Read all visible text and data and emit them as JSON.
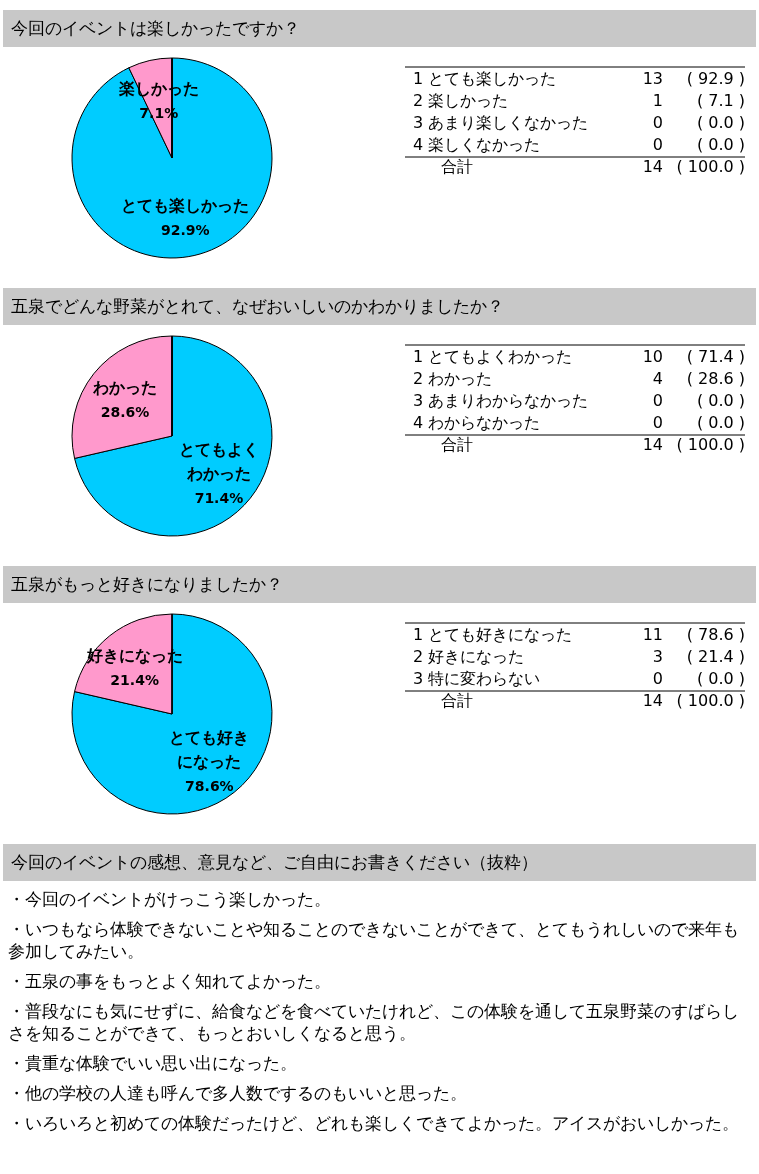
{
  "chart_data": [
    {
      "type": "pie",
      "title": "今回のイベントは楽しかったですか？",
      "categories": [
        "とても楽しかった",
        "楽しかった",
        "あまり楽しくなかった",
        "楽しくなかった"
      ],
      "values": [
        92.9,
        7.1,
        0.0,
        0.0
      ],
      "colors": [
        "#00ccff",
        "#ff99cc",
        "#ffff99",
        "#99cc00"
      ],
      "value_labels": [
        "92.9%",
        "7.1%",
        null,
        null
      ],
      "annotations": [
        "1",
        "13",
        "( 92.9 )",
        "2",
        "1",
        "( 7.1 )",
        "3",
        "0",
        "( 0.0 )",
        "4",
        "0",
        "( 0.0 )",
        "合計",
        "14",
        "( 100.0 )"
      ]
    },
    {
      "type": "pie",
      "title": "五泉でどんな野菜がとれて、なぜおいしいのかわかりましたか？",
      "categories": [
        "とてもよくわかった",
        "わかった",
        "あまりわからなかった",
        "わからなかった"
      ],
      "values": [
        71.4,
        28.6,
        0.0,
        0.0
      ],
      "colors": [
        "#00ccff",
        "#ff99cc",
        "#ffff99",
        "#99cc00"
      ],
      "value_labels": [
        "71.4%",
        "28.6%",
        null,
        null
      ],
      "annotations": [
        "1",
        "10",
        "( 71.4 )",
        "2",
        "4",
        "( 28.6 )",
        "3",
        "0",
        "( 0.0 )",
        "4",
        "0",
        "( 0.0 )",
        "合計",
        "14",
        "( 100.0 )"
      ]
    },
    {
      "type": "pie",
      "title": "五泉がもっと好きになりましたか？",
      "categories": [
        "とても好きになった",
        "好きになった",
        "特に変わらない"
      ],
      "values": [
        78.6,
        21.4,
        0.0
      ],
      "colors": [
        "#00ccff",
        "#ff99cc",
        "#ffff99"
      ],
      "value_labels": [
        "78.6%",
        "21.4%",
        null
      ],
      "annotations": [
        "1",
        "11",
        "( 78.6 )",
        "2",
        "3",
        "( 21.4 )",
        "3",
        "0",
        "( 0.0 )",
        "合計",
        "14",
        "( 100.0 )"
      ]
    },
    {
      "type": "other",
      "title": "今回のイベントの感想、意見など、ご自由にお書きください（抜粋）",
      "annotations": [
        "・今回のイベントがけっこう楽しかった。",
        "・いつもなら体験できないことや知ることのできないことができて、とてもうれしいので来年も参加してみたい。",
        "・五泉の事をもっとよく知れてよかった。",
        "・普段なにも気にせずに、給食などを食べていたけれど、この体験を通して五泉野菜のすばらしさを知ることができて、もっとおいしくなると思う。",
        "・貴重な体験でいい思い出になった。",
        "・他の学校の人達も呼んで多人数でするのもいいと思った。",
        "・いろいろと初めての体験だったけど、どれも楽しくできてよかった。アイスがおいしかった。"
      ]
    }
  ]
}
